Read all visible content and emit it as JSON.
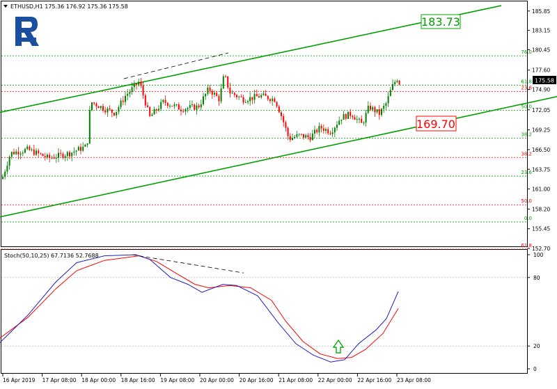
{
  "colors": {
    "up": "#008000",
    "down": "#ff0000",
    "channel": "#00a000",
    "fib_green": "#00a000",
    "fib_red": "#ff0000",
    "stoch_main": "#1f1fbf",
    "stoch_signal": "#ff0000",
    "logo": "#1a4fa0",
    "axis": "#000000",
    "grid_dotted": "#c0c0c0",
    "arrow": "#00a000"
  },
  "header": {
    "symbol_info": "ETHUSD,H1  175.36 176.92 175.36 175.58"
  },
  "logo": {
    "name": "broker-logo"
  },
  "price_axis": {
    "ticks": [
      "185.85",
      "183.15",
      "180.45",
      "177.60",
      "174.90",
      "172.05",
      "169.25",
      "166.50",
      "163.75",
      "161.00",
      "158.20",
      "155.45",
      "152.70"
    ],
    "current_price": "175.58"
  },
  "callouts": {
    "upper": "183.73",
    "lower": "169.70"
  },
  "stoch": {
    "header": "Stoch(50,10,25) 67.7136 52.7688",
    "ticks": [
      "100",
      "80",
      "20",
      "0"
    ]
  },
  "time_axis": {
    "ticks": [
      "16 Apr 2019",
      "17 Apr 08:00",
      "18 Apr 00:00",
      "18 Apr 16:00",
      "19 Apr 08:00",
      "20 Apr 00:00",
      "20 Apr 16:00",
      "21 Apr 08:00",
      "22 Apr 00:00",
      "22 Apr 16:00",
      "23 Apr 08:00"
    ]
  },
  "chart_data": {
    "type": "candlestick",
    "symbol": "ETHUSD",
    "timeframe": "H1",
    "ohlc_header": {
      "open": 175.36,
      "high": 176.92,
      "low": 175.36,
      "close": 175.58
    },
    "ylim": [
      152.7,
      186.9
    ],
    "fibonacci": {
      "green": [
        {
          "label": "76.0",
          "price": 179.6
        },
        {
          "label": "61.8",
          "price": 175.5
        },
        {
          "label": "50.0",
          "price": 172.0
        },
        {
          "label": "38.2",
          "price": 168.1
        },
        {
          "label": "23.6",
          "price": 162.8
        },
        {
          "label": "0.0",
          "price": 156.4
        }
      ],
      "red": [
        {
          "label": "23.6",
          "price": 174.6
        },
        {
          "label": "38.2",
          "price": 165.4
        },
        {
          "label": "50.0",
          "price": 158.8
        },
        {
          "label": "61.8",
          "price": 152.6
        }
      ]
    },
    "channel": {
      "upper": {
        "from": [
          0,
          171.7
        ],
        "to": [
          720,
          186.6
        ]
      },
      "lower": {
        "from": [
          0,
          157.1
        ],
        "to": [
          800,
          173.9
        ]
      }
    },
    "price_divergence_line": {
      "from": [
        178,
        176.4
      ],
      "to": [
        328,
        180.0
      ]
    },
    "key_points": [
      {
        "x": 0,
        "close": 161.5
      },
      {
        "x": 15,
        "close": 166.0
      },
      {
        "x": 40,
        "close": 166.5
      },
      {
        "x": 70,
        "close": 165.3
      },
      {
        "x": 100,
        "close": 166.0
      },
      {
        "x": 125,
        "close": 167.0
      },
      {
        "x": 130,
        "close": 173.2
      },
      {
        "x": 150,
        "close": 172.2
      },
      {
        "x": 165,
        "close": 171.6
      },
      {
        "x": 180,
        "close": 174.0
      },
      {
        "x": 200,
        "close": 176.0
      },
      {
        "x": 215,
        "close": 171.0
      },
      {
        "x": 235,
        "close": 173.2
      },
      {
        "x": 260,
        "close": 172.2
      },
      {
        "x": 285,
        "close": 172.5
      },
      {
        "x": 300,
        "close": 175.0
      },
      {
        "x": 315,
        "close": 173.5
      },
      {
        "x": 322,
        "close": 177.0
      },
      {
        "x": 330,
        "close": 174.5
      },
      {
        "x": 350,
        "close": 173.5
      },
      {
        "x": 375,
        "close": 174.0
      },
      {
        "x": 395,
        "close": 173.5
      },
      {
        "x": 405,
        "close": 171.0
      },
      {
        "x": 415,
        "close": 168.0
      },
      {
        "x": 430,
        "close": 168.5
      },
      {
        "x": 445,
        "close": 168.2
      },
      {
        "x": 460,
        "close": 169.6
      },
      {
        "x": 475,
        "close": 169.0
      },
      {
        "x": 490,
        "close": 171.0
      },
      {
        "x": 505,
        "close": 171.5
      },
      {
        "x": 520,
        "close": 170.0
      },
      {
        "x": 530,
        "close": 172.5
      },
      {
        "x": 545,
        "close": 171.5
      },
      {
        "x": 555,
        "close": 173.0
      },
      {
        "x": 562,
        "close": 175.0
      },
      {
        "x": 570,
        "close": 176.5
      },
      {
        "x": 575,
        "close": 175.58
      }
    ],
    "stochastic": {
      "ylim": [
        0,
        100
      ],
      "levels": [
        80,
        20
      ],
      "main": [
        {
          "x": 0,
          "v": 23
        },
        {
          "x": 40,
          "v": 47
        },
        {
          "x": 80,
          "v": 76
        },
        {
          "x": 110,
          "v": 93
        },
        {
          "x": 150,
          "v": 99
        },
        {
          "x": 195,
          "v": 100
        },
        {
          "x": 215,
          "v": 96
        },
        {
          "x": 245,
          "v": 80
        },
        {
          "x": 270,
          "v": 74
        },
        {
          "x": 290,
          "v": 67
        },
        {
          "x": 320,
          "v": 74
        },
        {
          "x": 340,
          "v": 73
        },
        {
          "x": 370,
          "v": 64
        },
        {
          "x": 400,
          "v": 40
        },
        {
          "x": 425,
          "v": 22
        },
        {
          "x": 450,
          "v": 12
        },
        {
          "x": 475,
          "v": 6
        },
        {
          "x": 495,
          "v": 8
        },
        {
          "x": 515,
          "v": 22
        },
        {
          "x": 540,
          "v": 34
        },
        {
          "x": 555,
          "v": 44
        },
        {
          "x": 572,
          "v": 67.7
        }
      ],
      "signal": [
        {
          "x": 0,
          "v": 27
        },
        {
          "x": 40,
          "v": 45
        },
        {
          "x": 80,
          "v": 70
        },
        {
          "x": 110,
          "v": 86
        },
        {
          "x": 150,
          "v": 95
        },
        {
          "x": 200,
          "v": 99
        },
        {
          "x": 225,
          "v": 94
        },
        {
          "x": 255,
          "v": 83
        },
        {
          "x": 280,
          "v": 74
        },
        {
          "x": 300,
          "v": 71
        },
        {
          "x": 330,
          "v": 73
        },
        {
          "x": 360,
          "v": 71
        },
        {
          "x": 390,
          "v": 60
        },
        {
          "x": 410,
          "v": 42
        },
        {
          "x": 435,
          "v": 24
        },
        {
          "x": 460,
          "v": 13
        },
        {
          "x": 485,
          "v": 9
        },
        {
          "x": 505,
          "v": 10
        },
        {
          "x": 525,
          "v": 17
        },
        {
          "x": 550,
          "v": 31
        },
        {
          "x": 572,
          "v": 52.8
        }
      ],
      "divergence_line": {
        "from": [
          190,
          100
        ],
        "to": [
          350,
          84
        ]
      },
      "arrow": {
        "x": 486,
        "v": 14,
        "direction": "up"
      }
    }
  }
}
